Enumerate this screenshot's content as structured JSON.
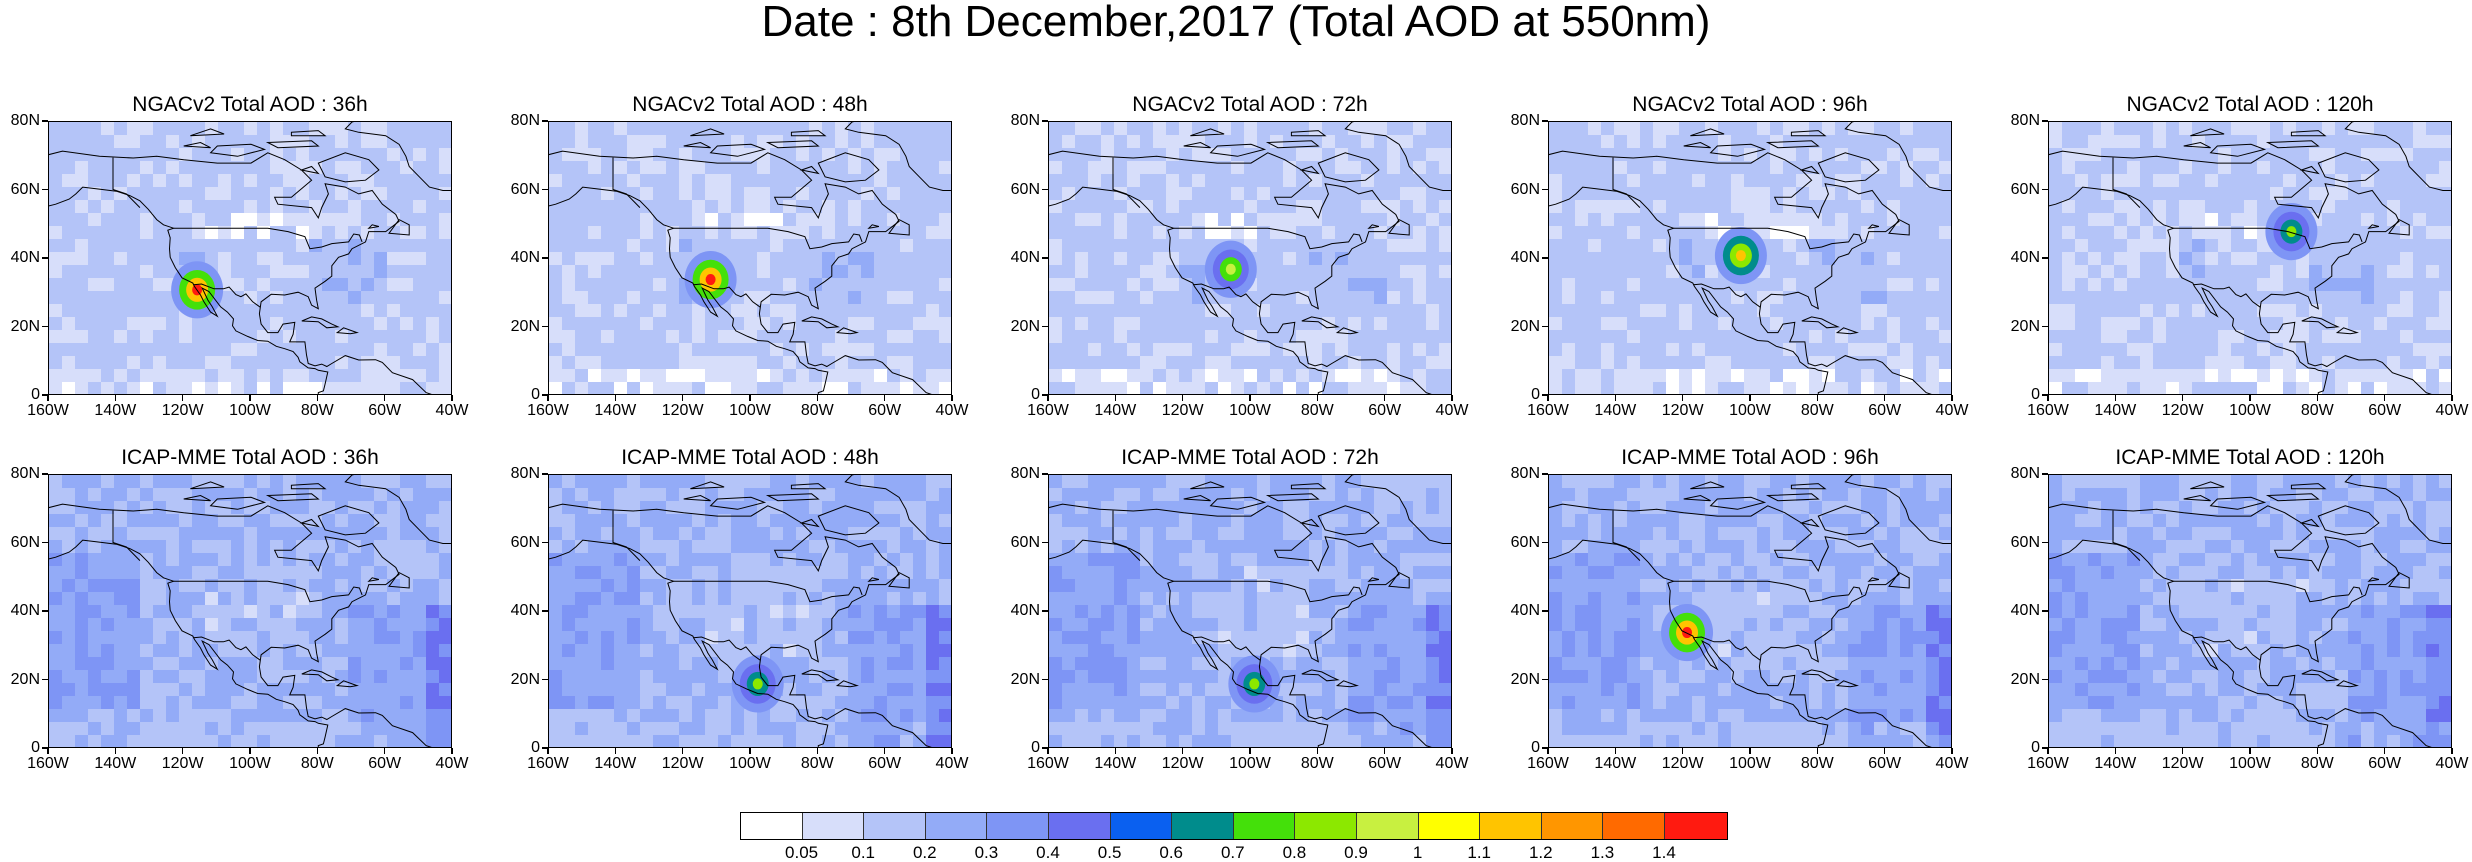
{
  "title": "Date : 8th December,2017 (Total AOD at 550nm)",
  "latitude_labels": [
    "80N",
    "60N",
    "40N",
    "20N",
    "0"
  ],
  "longitude_labels": [
    "160W",
    "140W",
    "120W",
    "100W",
    "80W",
    "60W",
    "40W"
  ],
  "map_extent": {
    "lon_min": -160,
    "lon_max": -40,
    "lat_min": 0,
    "lat_max": 80
  },
  "panels": [
    {
      "row": 0,
      "title": "NGACv2 Total AOD : 36h",
      "model": "NGACv2",
      "lead": "36h",
      "hotspots": [
        {
          "lon": -116,
          "lat": 31,
          "value": 1.4
        }
      ]
    },
    {
      "row": 0,
      "title": "NGACv2 Total AOD : 48h",
      "model": "NGACv2",
      "lead": "48h",
      "hotspots": [
        {
          "lon": -112,
          "lat": 34,
          "value": 1.4
        }
      ]
    },
    {
      "row": 0,
      "title": "NGACv2 Total AOD : 72h",
      "model": "NGACv2",
      "lead": "72h",
      "hotspots": [
        {
          "lon": -106,
          "lat": 37,
          "value": 0.9
        }
      ]
    },
    {
      "row": 0,
      "title": "NGACv2 Total AOD : 96h",
      "model": "NGACv2",
      "lead": "96h",
      "hotspots": [
        {
          "lon": -103,
          "lat": 41,
          "value": 1.1
        }
      ]
    },
    {
      "row": 0,
      "title": "NGACv2 Total AOD : 120h",
      "model": "NGACv2",
      "lead": "120h",
      "hotspots": [
        {
          "lon": -88,
          "lat": 48,
          "value": 0.8
        }
      ]
    },
    {
      "row": 1,
      "title": "ICAP-MME Total AOD : 36h",
      "model": "ICAP-MME",
      "lead": "36h",
      "hotspots": []
    },
    {
      "row": 1,
      "title": "ICAP-MME Total AOD : 48h",
      "model": "ICAP-MME",
      "lead": "48h",
      "hotspots": [
        {
          "lon": -98,
          "lat": 19,
          "value": 0.8
        }
      ]
    },
    {
      "row": 1,
      "title": "ICAP-MME Total AOD : 72h",
      "model": "ICAP-MME",
      "lead": "72h",
      "hotspots": [
        {
          "lon": -99,
          "lat": 19,
          "value": 0.8
        }
      ]
    },
    {
      "row": 1,
      "title": "ICAP-MME Total AOD : 96h",
      "model": "ICAP-MME",
      "lead": "96h",
      "hotspots": [
        {
          "lon": -119,
          "lat": 34,
          "value": 1.4
        }
      ]
    },
    {
      "row": 1,
      "title": "ICAP-MME Total AOD : 120h",
      "model": "ICAP-MME",
      "lead": "120h",
      "hotspots": []
    }
  ],
  "colorbar": {
    "labels": [
      "0.05",
      "0.1",
      "0.2",
      "0.3",
      "0.4",
      "0.5",
      "0.6",
      "0.7",
      "0.8",
      "0.9",
      "1",
      "1.1",
      "1.2",
      "1.3",
      "1.4"
    ],
    "colors": [
      "#ffffff",
      "#d7defa",
      "#b4c4f8",
      "#93abf7",
      "#7e95f5",
      "#6a6ff0",
      "#0a60f0",
      "#008c8c",
      "#44e00a",
      "#8ce800",
      "#c8f040",
      "#ffff00",
      "#ffc400",
      "#ff9600",
      "#ff6a00",
      "#ff1a10"
    ]
  }
}
